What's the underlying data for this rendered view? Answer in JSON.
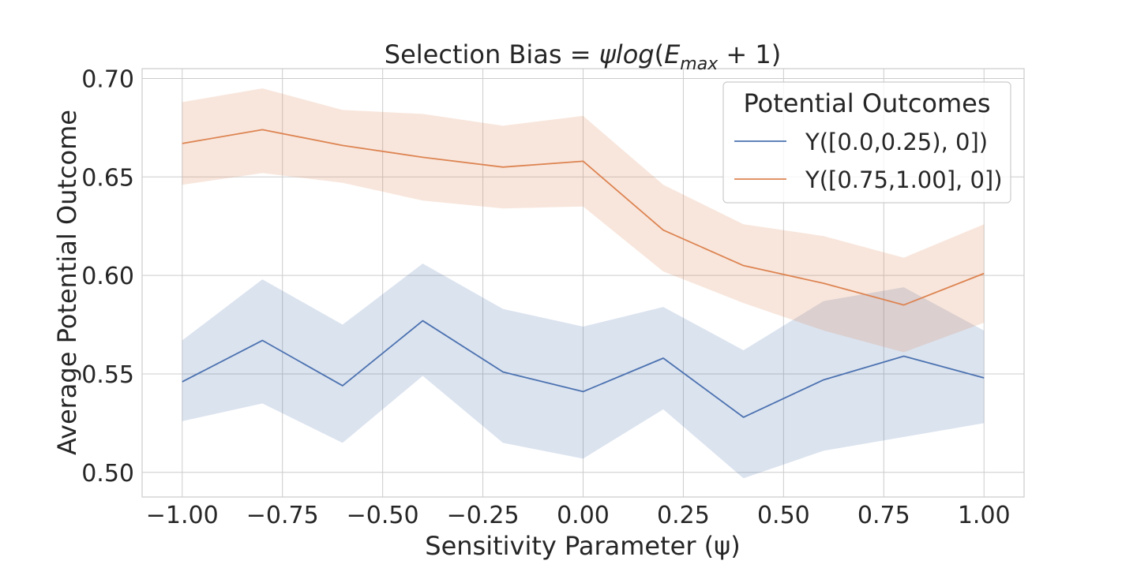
{
  "chart_data": {
    "type": "line",
    "title": {
      "prefix": "Selection Bias = ",
      "psi": "ψ",
      "log": "log",
      "open": "(",
      "E": "E",
      "sub": "max",
      "suffix": " + 1)"
    },
    "xlabel": "Sensitivity Parameter (ψ)",
    "ylabel": "Average Potential Outcome",
    "x": [
      -1.0,
      -0.8,
      -0.6,
      -0.4,
      -0.2,
      0.0,
      0.2,
      0.4,
      0.6,
      0.8,
      1.0
    ],
    "xlim": [
      -1.1,
      1.1
    ],
    "ylim": [
      0.4875,
      0.705
    ],
    "xticks": [
      -1.0,
      -0.75,
      -0.5,
      -0.25,
      0.0,
      0.25,
      0.5,
      0.75,
      1.0
    ],
    "xtick_labels": [
      "−1.00",
      "−0.75",
      "−0.50",
      "−0.25",
      "0.00",
      "0.25",
      "0.50",
      "0.75",
      "1.00"
    ],
    "yticks": [
      0.5,
      0.55,
      0.6,
      0.65,
      0.7
    ],
    "ytick_labels": [
      "0.50",
      "0.55",
      "0.60",
      "0.65",
      "0.70"
    ],
    "grid": true,
    "legend": {
      "title": "Potential Outcomes",
      "placement": "upper right"
    },
    "series": [
      {
        "name": "Y([0.0,0.25), 0])",
        "color": "#4c72b0",
        "values": [
          0.546,
          0.567,
          0.544,
          0.577,
          0.551,
          0.541,
          0.558,
          0.528,
          0.547,
          0.559,
          0.548
        ],
        "lower": [
          0.526,
          0.535,
          0.515,
          0.549,
          0.515,
          0.507,
          0.532,
          0.497,
          0.511,
          0.518,
          0.525
        ],
        "upper": [
          0.567,
          0.598,
          0.575,
          0.606,
          0.583,
          0.574,
          0.584,
          0.562,
          0.587,
          0.594,
          0.572
        ]
      },
      {
        "name": "Y([0.75,1.00], 0])",
        "color": "#dd8452",
        "values": [
          0.667,
          0.674,
          0.666,
          0.66,
          0.655,
          0.658,
          0.623,
          0.605,
          0.596,
          0.585,
          0.601
        ],
        "lower": [
          0.646,
          0.652,
          0.647,
          0.638,
          0.634,
          0.635,
          0.602,
          0.586,
          0.572,
          0.561,
          0.576
        ],
        "upper": [
          0.688,
          0.695,
          0.684,
          0.682,
          0.676,
          0.681,
          0.646,
          0.626,
          0.62,
          0.609,
          0.626
        ]
      }
    ]
  }
}
